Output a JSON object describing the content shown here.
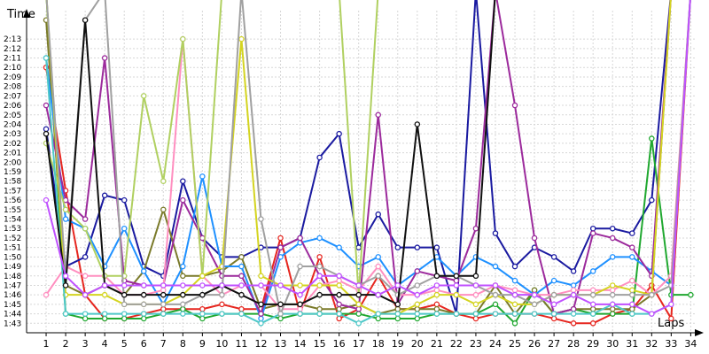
{
  "chart_data": {
    "type": "line",
    "title": "",
    "xlabel": "Laps",
    "ylabel": "Time",
    "x": [
      1,
      2,
      3,
      4,
      5,
      6,
      7,
      8,
      9,
      10,
      11,
      12,
      13,
      14,
      15,
      16,
      17,
      18,
      19,
      20,
      21,
      22,
      23,
      24,
      25,
      26,
      27,
      28,
      29,
      30,
      31,
      32,
      33,
      34
    ],
    "x_tick_labels": [
      "1",
      "2",
      "3",
      "4",
      "5",
      "6",
      "7",
      "8",
      "9",
      "10",
      "11",
      "12",
      "13",
      "14",
      "15",
      "16",
      "17",
      "18",
      "19",
      "20",
      "21",
      "22",
      "23",
      "24",
      "25",
      "26",
      "27",
      "28",
      "29",
      "30",
      "31",
      "32",
      "33",
      "34"
    ],
    "y_tick_labels": [
      "1:43",
      "1:44",
      "1:45",
      "1:46",
      "1:47",
      "1:48",
      "1:49",
      "1:50",
      "1:51",
      "1:52",
      "1:53",
      "1:54",
      "1:55",
      "1:56",
      "1:57",
      "1:58",
      "1:59",
      "2:00",
      "2:01",
      "2:02",
      "2:03",
      "2:04",
      "2:05",
      "2:06",
      "2:07",
      "2:08",
      "2:09",
      "2:10",
      "2:11",
      "2:12",
      "2:13"
    ],
    "y_tick_seconds": [
      103,
      104,
      105,
      106,
      107,
      108,
      109,
      110,
      111,
      112,
      113,
      114,
      115,
      116,
      117,
      118,
      119,
      120,
      121,
      122,
      123,
      124,
      125,
      126,
      127,
      128,
      129,
      130,
      131,
      132,
      133
    ],
    "ylim_seconds": [
      102,
      136
    ],
    "grid": true,
    "legend": "none",
    "series": [
      {
        "color": "#e6261f",
        "values": [
          130,
          117,
          106,
          103.5,
          103.5,
          104,
          104.5,
          104.5,
          104.5,
          105,
          104.5,
          104.5,
          112,
          104,
          110,
          103.5,
          104.5,
          108,
          104.5,
          104.5,
          105,
          104,
          103.5,
          104,
          104,
          104,
          103.5,
          103,
          103,
          104,
          104.5,
          107,
          103.5,
          null
        ]
      },
      {
        "color": "#1a1aa0",
        "values": [
          123.5,
          109,
          110,
          116.5,
          116,
          109,
          108,
          118,
          112,
          110,
          110,
          111,
          111,
          112,
          120.5,
          123,
          111,
          114.5,
          111,
          111,
          111,
          104,
          null,
          112.5,
          109,
          111,
          110,
          108.5,
          113,
          113,
          112.5,
          116,
          null,
          null
        ]
      },
      {
        "color": "#20a830",
        "values": [
          null,
          104,
          103.5,
          103.5,
          103.5,
          103.5,
          104,
          104.5,
          103.5,
          104,
          104,
          104,
          103.5,
          104,
          104,
          104,
          104,
          103.5,
          103.5,
          103.5,
          104,
          104,
          104,
          105,
          103,
          106.5,
          104,
          104.5,
          104,
          104,
          104,
          122.5,
          106,
          106
        ]
      },
      {
        "color": "#7a7a2a",
        "values": [
          135,
          107,
          106,
          107,
          106,
          108.5,
          115,
          108,
          108,
          108.5,
          110,
          104.5,
          105,
          105,
          104.5,
          104.5,
          105,
          104,
          104.5,
          104.5,
          104.5,
          104,
          104,
          107,
          104,
          106.5,
          104,
          104.5,
          104.5,
          104.5,
          104.5,
          106,
          null,
          null
        ]
      },
      {
        "color": "#1e90ff",
        "values": [
          131,
          114,
          113,
          109,
          113,
          108.5,
          105,
          109,
          118.5,
          109,
          109,
          103.5,
          110,
          111.5,
          112,
          111,
          109,
          110,
          107,
          108.5,
          110,
          108,
          110,
          109,
          107.5,
          106,
          107.5,
          107,
          108.5,
          110,
          110,
          108.5,
          107,
          null
        ]
      },
      {
        "color": "#9c2a9c",
        "values": [
          126,
          116,
          114,
          131,
          107.5,
          107,
          107,
          116,
          112,
          108,
          108,
          104,
          111,
          112,
          108,
          105,
          104.5,
          125,
          105,
          108.5,
          108,
          107.5,
          113,
          null,
          126,
          112,
          104,
          104.5,
          112.5,
          112,
          111,
          108,
          null,
          null
        ]
      },
      {
        "color": "#ff8fc0",
        "values": [
          106,
          109,
          108,
          108,
          106,
          106,
          106.5,
          133,
          108,
          106,
          107,
          107,
          104.5,
          104.5,
          107,
          107.5,
          106.5,
          109,
          106,
          106,
          106.5,
          106,
          106,
          107,
          106.5,
          106,
          106,
          106.5,
          106.5,
          106.5,
          107.5,
          106,
          108,
          null
        ]
      },
      {
        "color": "#b0d060",
        "values": [
          122,
          115,
          113,
          108,
          108,
          127,
          118,
          133,
          108,
          null,
          null,
          null,
          null,
          null,
          null,
          null,
          106,
          null,
          null,
          null,
          null,
          null,
          null,
          null,
          null,
          null,
          null,
          null,
          null,
          null,
          null,
          null,
          null,
          null
        ]
      },
      {
        "color": "#d4d420",
        "values": [
          null,
          106,
          106,
          106,
          105,
          105,
          105,
          106,
          108,
          109,
          133,
          108,
          107,
          107,
          107,
          107,
          105,
          104,
          104,
          105,
          106,
          106,
          105,
          106,
          105,
          105,
          106,
          106,
          106,
          107,
          106.5,
          106,
          null,
          null
        ]
      },
      {
        "color": "#4fc8c8",
        "values": [
          131,
          104,
          104,
          104,
          104,
          104,
          104,
          104,
          104,
          104,
          104,
          103,
          104,
          104,
          104,
          104,
          103,
          104,
          104,
          104,
          104,
          104,
          104,
          104,
          104,
          104,
          104,
          104,
          104,
          105,
          104,
          104,
          105,
          null
        ]
      },
      {
        "color": "#a0a0a0",
        "values": [
          null,
          108,
          135,
          null,
          105,
          105,
          105,
          105,
          106,
          106,
          null,
          114,
          104,
          109,
          109,
          108,
          107,
          108,
          106,
          107,
          108,
          108,
          107,
          106,
          106,
          105,
          106,
          106,
          106,
          106,
          106,
          106,
          107,
          null
        ]
      },
      {
        "color": "#101010",
        "values": [
          123,
          107,
          135,
          107,
          106,
          106,
          106,
          106,
          106,
          107,
          106,
          105,
          105,
          105,
          106,
          106,
          106,
          106,
          105,
          124,
          108,
          108,
          108,
          null,
          null,
          null,
          null,
          null,
          null,
          null,
          null,
          null,
          null,
          null
        ]
      },
      {
        "color": "#c050ff",
        "values": [
          116,
          108,
          106,
          107,
          107,
          107,
          107,
          107,
          107,
          107,
          107,
          107,
          107,
          106,
          108,
          108,
          107,
          106,
          107,
          106,
          107,
          107,
          107,
          107,
          106,
          106,
          105,
          106,
          105,
          105,
          105,
          104,
          105,
          null
        ]
      }
    ]
  }
}
